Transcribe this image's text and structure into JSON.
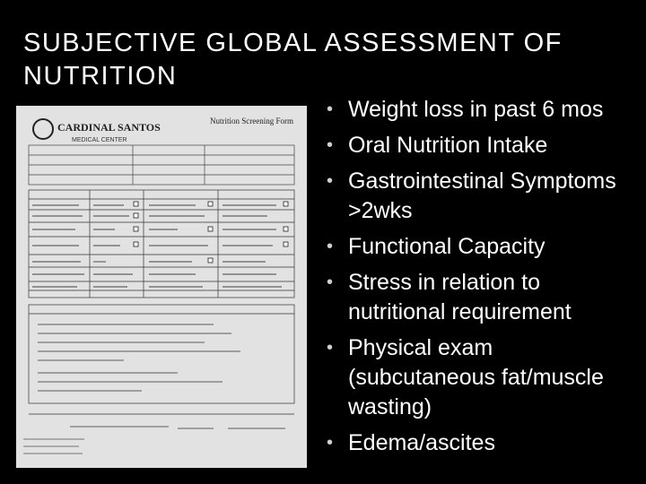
{
  "slide": {
    "title": "SUBJECTIVE GLOBAL ASSESSMENT OF NUTRITION",
    "bullets": [
      "Weight loss in past 6 mos",
      "Oral Nutrition Intake",
      "Gastrointestinal Symptoms >2wks",
      "Functional Capacity",
      "Stress in relation to nutritional requirement",
      "Physical exam (subcutaneous fat/muscle wasting)",
      "Edema/ascites"
    ]
  },
  "form_image": {
    "logo_text": "CARDINAL SANTOS",
    "logo_subtext": "MEDICAL CENTER",
    "form_title": "Nutrition Screening Form"
  },
  "colors": {
    "background": "#000000",
    "text": "#ffffff",
    "paper": "#e4e4e4"
  }
}
